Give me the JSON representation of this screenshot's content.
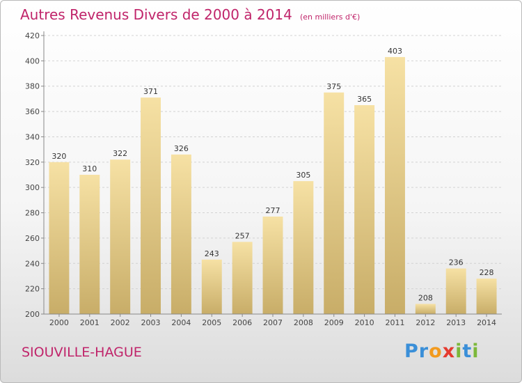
{
  "title": "Autres Revenus Divers de 2000 à 2014",
  "subtitle": "(en milliers d'€)",
  "city": "SIOUVILLE-HAGUE",
  "brand": {
    "letters": [
      {
        "ch": "P",
        "color": "#3a8fd8"
      },
      {
        "ch": "r",
        "color": "#3a8fd8"
      },
      {
        "ch": "o",
        "color": "#f29a1e"
      },
      {
        "ch": "x",
        "color": "#e53a2f"
      },
      {
        "ch": "i",
        "color": "#7cb83a"
      },
      {
        "ch": "t",
        "color": "#3a8fd8"
      },
      {
        "ch": "i",
        "color": "#7cb83a"
      }
    ]
  },
  "colors": {
    "accent": "#c0246a",
    "bar_light": "#f6e1a4",
    "bar_dark": "#c8ad68"
  },
  "chart_data": {
    "type": "bar",
    "categories": [
      "2000",
      "2001",
      "2002",
      "2003",
      "2004",
      "2005",
      "2006",
      "2007",
      "2008",
      "2009",
      "2010",
      "2011",
      "2012",
      "2013",
      "2014"
    ],
    "values": [
      320,
      310,
      322,
      371,
      326,
      243,
      257,
      277,
      305,
      375,
      365,
      403,
      208,
      236,
      228
    ],
    "ylim": [
      200,
      420
    ],
    "yticks": [
      200,
      220,
      240,
      260,
      280,
      300,
      320,
      340,
      360,
      380,
      400,
      420
    ],
    "grid": true,
    "data_labels": true
  }
}
